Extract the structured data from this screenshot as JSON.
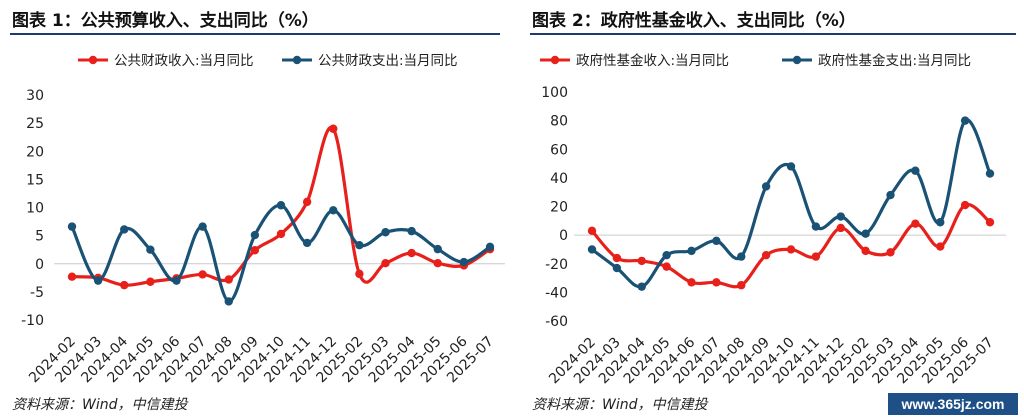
{
  "charts": [
    {
      "title": "图表 1：公共预算收入、支出同比（%）"
    },
    {
      "title": "图表 2：政府性基金收入、支出同比（%）"
    }
  ],
  "source": "资料来源：Wind，中信建投",
  "watermark": "www.365jz.com",
  "colors": {
    "red": "#e8201b",
    "blue": "#1a5276",
    "title_rule": "#1f3b6e"
  },
  "chart_data": [
    {
      "type": "line",
      "categories": [
        "2024-02",
        "2024-03",
        "2024-04",
        "2024-05",
        "2024-06",
        "2024-07",
        "2024-08",
        "2024-09",
        "2024-10",
        "2024-11",
        "2024-12",
        "2025-02",
        "2025-03",
        "2025-04",
        "2025-05",
        "2025-06",
        "2025-07"
      ],
      "series": [
        {
          "name": "公共财政收入:当月同比",
          "color": "#e8201b",
          "values": [
            -2.3,
            -2.5,
            -3.8,
            -3.2,
            -2.6,
            -1.9,
            -2.8,
            2.4,
            5.3,
            11.0,
            24.0,
            -1.8,
            0.1,
            1.9,
            0.1,
            -0.3,
            2.6
          ]
        },
        {
          "name": "公共财政支出:当月同比",
          "color": "#1a5276",
          "values": [
            6.6,
            -3.0,
            6.1,
            2.5,
            -3.0,
            6.6,
            -6.7,
            5.1,
            10.4,
            3.7,
            9.5,
            3.3,
            5.6,
            5.8,
            2.6,
            0.3,
            3.0
          ]
        }
      ],
      "ylim": [
        -10,
        30
      ],
      "yticks": [
        -10,
        -5,
        0,
        5,
        10,
        15,
        20,
        25,
        30
      ],
      "grid": false,
      "legend": "top"
    },
    {
      "type": "line",
      "categories": [
        "2024-02",
        "2024-03",
        "2024-04",
        "2024-05",
        "2024-06",
        "2024-07",
        "2024-08",
        "2024-09",
        "2024-10",
        "2024-11",
        "2024-12",
        "2025-02",
        "2025-03",
        "2025-04",
        "2025-05",
        "2025-06",
        "2025-07"
      ],
      "series": [
        {
          "name": "政府性基金收入:当月同比",
          "color": "#e8201b",
          "values": [
            3,
            -16,
            -18,
            -22,
            -33,
            -33,
            -35,
            -14,
            -10,
            -15,
            5,
            -11,
            -12,
            8,
            -8,
            21,
            9
          ]
        },
        {
          "name": "政府性基金支出:当月同比",
          "color": "#1a5276",
          "values": [
            -10,
            -23,
            -36,
            -14,
            -11,
            -4,
            -15,
            34,
            48,
            6,
            13,
            1,
            28,
            45,
            9,
            80,
            43
          ]
        }
      ],
      "ylim": [
        -60,
        100
      ],
      "yticks": [
        -60,
        -40,
        -20,
        0,
        20,
        40,
        60,
        80,
        100
      ],
      "grid": false,
      "legend": "top"
    }
  ]
}
